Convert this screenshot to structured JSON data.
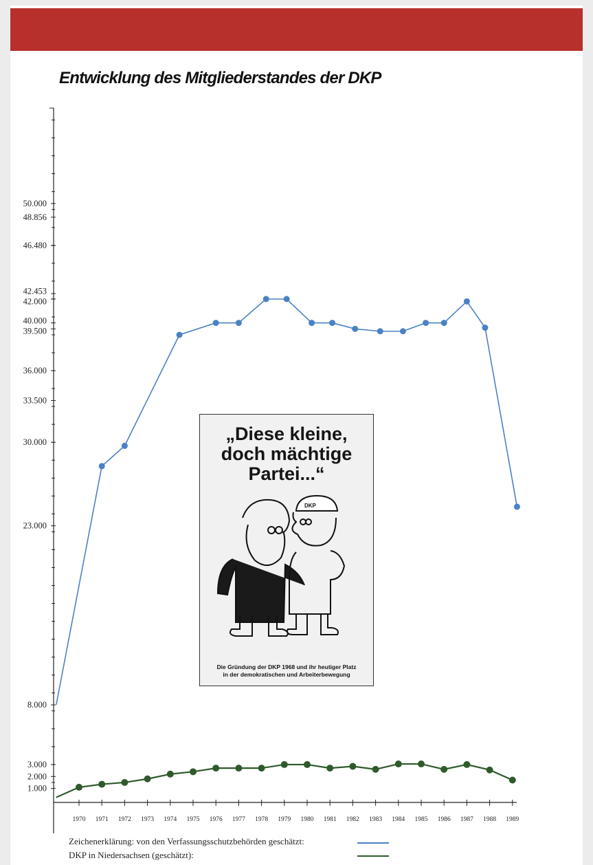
{
  "title": "Entwicklung des Mitgliederstandes der DKP",
  "colors": {
    "band": "#b8302b",
    "series_blue": "#4a82c4",
    "series_green": "#2f5a2c"
  },
  "chart_data": {
    "type": "line",
    "title": "Entwicklung des Mitgliederstandes der DKP",
    "xlabel": "",
    "ylabel": "",
    "x_ticks": [
      "1970",
      "1971",
      "1972",
      "1973",
      "1974",
      "1975",
      "1976",
      "1977",
      "1978",
      "1979",
      "1980",
      "1981",
      "1982",
      "1983",
      "1984",
      "1985",
      "1986",
      "1987",
      "1988",
      "1989"
    ],
    "y_tick_labels": [
      "50.000",
      "48.856",
      "46.480",
      "42.453",
      "42.000",
      "40.000",
      "39.500",
      "36.000",
      "33.500",
      "30.000",
      "23.000",
      "8.000",
      "3.000",
      "2.000",
      "1.000"
    ],
    "y_tick_values": [
      50000,
      48856,
      46480,
      42453,
      42000,
      40000,
      39500,
      36000,
      33500,
      30000,
      23000,
      8000,
      3000,
      2000,
      1000
    ],
    "ylim": [
      0,
      58000
    ],
    "xlim": [
      1969,
      1989.5
    ],
    "grid": false,
    "legend_placement": "bottom",
    "series": [
      {
        "name": "von den Verfassungsschutzbehörden geschätzt",
        "color": "#4a82c4",
        "line_start": [
          1969,
          8000
        ],
        "x": [
          1971,
          1972,
          1974.4,
          1976,
          1977,
          1978.2,
          1979.1,
          1980.2,
          1981.1,
          1982.1,
          1983.2,
          1984.2,
          1985.2,
          1986,
          1987,
          1987.8,
          1989.2
        ],
        "values": [
          28000,
          29700,
          39000,
          40000,
          40000,
          42000,
          42000,
          40000,
          40000,
          39500,
          39300,
          39300,
          40000,
          40000,
          41800,
          39600,
          24600
        ]
      },
      {
        "name": "DKP in Niedersachsen (geschätzt)",
        "color": "#2f5a2c",
        "line_start": [
          1969,
          250
        ],
        "x": [
          1970,
          1971,
          1972,
          1973,
          1974,
          1975,
          1976,
          1977,
          1978,
          1979,
          1980,
          1981,
          1982,
          1983,
          1984,
          1985,
          1986,
          1987,
          1988,
          1989
        ],
        "values": [
          1100,
          1350,
          1500,
          1800,
          2200,
          2400,
          2700,
          2700,
          2700,
          3000,
          3000,
          2700,
          2850,
          2600,
          3050,
          3050,
          2600,
          3000,
          2550,
          1700
        ]
      }
    ]
  },
  "legend": {
    "line1": "Zeichenerklärung: von den Verfassungsschutzbehörden geschätzt:",
    "line2": "DKP in Niedersachsen (geschätzt):"
  },
  "poster": {
    "headline_1": "„Diese kleine,",
    "headline_2": "doch mächtige",
    "headline_3": "Partei...“",
    "cap_text": "DKP",
    "caption_1": "Die Gründung der DKP 1968 und ihr heutiger Platz",
    "caption_2": "in der demokratischen und Arbeiterbewegung"
  }
}
